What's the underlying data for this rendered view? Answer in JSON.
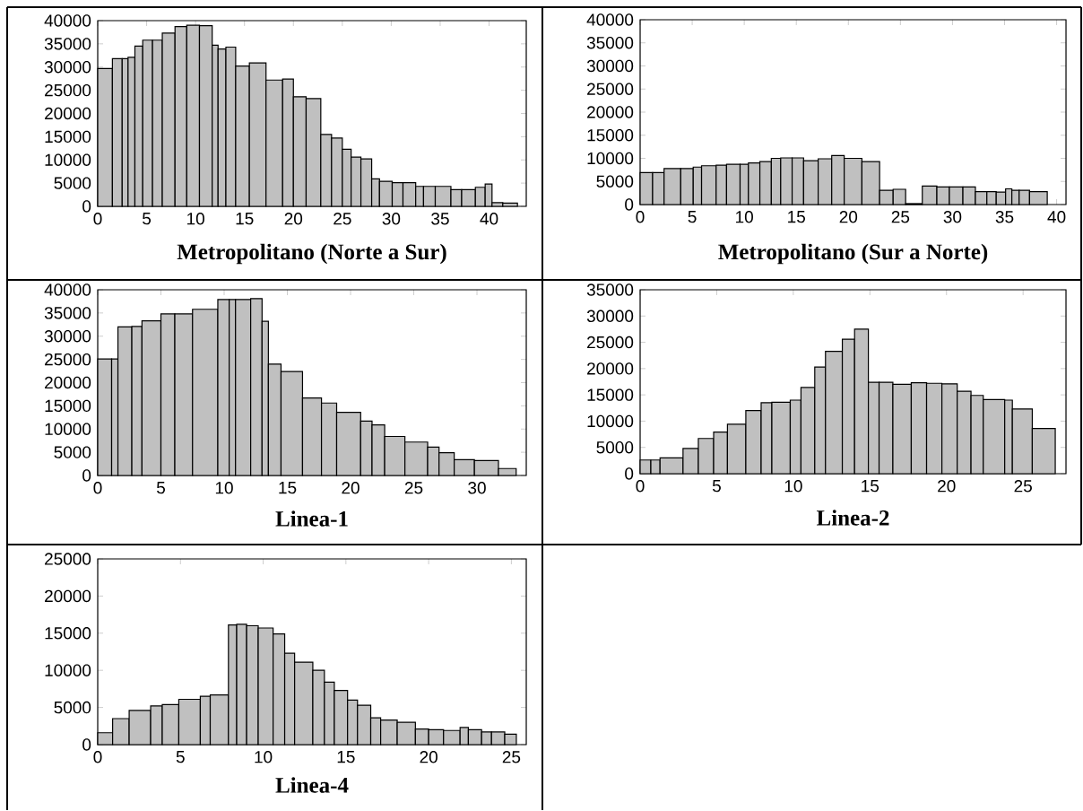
{
  "chart_data": [
    {
      "type": "histogram",
      "title": "Metropolitano (Norte a Sur)",
      "color": "#c0c0c0",
      "bins": [
        0,
        1.5,
        2.5,
        3.1,
        3.8,
        4.6,
        5.6,
        6.6,
        7.9,
        9.1,
        10.4,
        11.7,
        12.3,
        13.1,
        14.1,
        15.5,
        17.2,
        18.9,
        20.0,
        21.3,
        22.8,
        23.9,
        25.0,
        25.9,
        26.9,
        28.0,
        28.8,
        30.1,
        31.2,
        32.5,
        33.3,
        34.5,
        36.1,
        37.2,
        38.6,
        39.6,
        40.3,
        41.4,
        42.9
      ],
      "values": [
        29700,
        31800,
        31800,
        32100,
        34500,
        35800,
        35800,
        37300,
        38700,
        39000,
        38900,
        34700,
        33900,
        34300,
        30200,
        30900,
        27200,
        27400,
        23600,
        23200,
        15500,
        14700,
        12300,
        10600,
        10200,
        5900,
        5400,
        5100,
        5100,
        4300,
        4300,
        4300,
        3600,
        3600,
        4100,
        4800,
        800,
        700
      ],
      "xlim": [
        0,
        43.8
      ],
      "ylim": [
        0,
        40000
      ],
      "xticks": [
        0,
        5,
        10,
        15,
        20,
        25,
        30,
        35,
        40
      ],
      "yticks": [
        0,
        5000,
        10000,
        15000,
        20000,
        25000,
        30000,
        35000,
        40000
      ]
    },
    {
      "type": "histogram",
      "title": "Metropolitano (Sur a Norte)",
      "color": "#c0c0c0",
      "bins": [
        0,
        1.2,
        2.3,
        3.9,
        5.1,
        5.9,
        7.3,
        8.3,
        9.6,
        10.4,
        11.5,
        12.6,
        13.5,
        14.6,
        15.7,
        17.1,
        18.4,
        19.6,
        21.3,
        23.0,
        24.3,
        25.5,
        27.1,
        28.5,
        29.7,
        31.0,
        32.2,
        33.3,
        34.2,
        35.1,
        35.7,
        36.4,
        37.4,
        39.1
      ],
      "values": [
        6900,
        6900,
        7800,
        7800,
        8100,
        8400,
        8500,
        8700,
        8700,
        9000,
        9300,
        10000,
        10100,
        10100,
        9500,
        9900,
        10600,
        10000,
        9300,
        3100,
        3300,
        200,
        4000,
        3800,
        3800,
        3800,
        2800,
        2800,
        2700,
        3400,
        3100,
        3100,
        2800
      ],
      "xlim": [
        0,
        40.9
      ],
      "ylim": [
        0,
        40000
      ],
      "xticks": [
        0,
        5,
        10,
        15,
        20,
        25,
        30,
        35,
        40
      ],
      "yticks": [
        0,
        5000,
        10000,
        15000,
        20000,
        25000,
        30000,
        35000,
        40000
      ]
    },
    {
      "type": "histogram",
      "title": "Linea-1",
      "color": "#c0c0c0",
      "bins": [
        0,
        1.1,
        1.6,
        2.7,
        3.5,
        5.0,
        6.1,
        7.5,
        9.5,
        10.4,
        10.9,
        12.1,
        13.0,
        13.5,
        14.5,
        16.2,
        17.7,
        18.9,
        20.8,
        21.7,
        22.7,
        24.3,
        26.1,
        27.0,
        28.2,
        29.8,
        31.7,
        33.1
      ],
      "values": [
        25100,
        25100,
        32000,
        32100,
        33300,
        34800,
        34800,
        35800,
        37900,
        37900,
        37900,
        38100,
        33200,
        24000,
        22400,
        16700,
        15600,
        13600,
        11700,
        10900,
        8400,
        7200,
        6100,
        4900,
        3400,
        3200,
        1500
      ],
      "xlim": [
        0,
        33.9
      ],
      "ylim": [
        0,
        40000
      ],
      "xticks": [
        0,
        5,
        10,
        15,
        20,
        25,
        30
      ],
      "yticks": [
        0,
        5000,
        10000,
        15000,
        20000,
        25000,
        30000,
        35000,
        40000
      ]
    },
    {
      "type": "histogram",
      "title": "Linea-2",
      "color": "#c0c0c0",
      "bins": [
        0,
        0.7,
        1.3,
        2.8,
        3.8,
        4.8,
        5.7,
        6.9,
        7.9,
        8.6,
        9.8,
        10.5,
        11.4,
        12.1,
        13.2,
        14.0,
        14.9,
        15.6,
        16.5,
        17.7,
        18.7,
        19.7,
        20.7,
        21.6,
        22.4,
        23.8,
        24.3,
        25.6,
        27.1
      ],
      "values": [
        2600,
        2600,
        3000,
        4800,
        6700,
        7900,
        9400,
        12000,
        13500,
        13600,
        14000,
        16400,
        20300,
        23300,
        25600,
        27500,
        17400,
        17400,
        17000,
        17300,
        17200,
        17100,
        15700,
        14900,
        14100,
        14000,
        12300,
        8600
      ],
      "xlim": [
        0,
        27.8
      ],
      "ylim": [
        0,
        35000
      ],
      "xticks": [
        0,
        5,
        10,
        15,
        20,
        25
      ],
      "yticks": [
        0,
        5000,
        10000,
        15000,
        20000,
        25000,
        30000,
        35000
      ]
    },
    {
      "type": "histogram",
      "title": "Linea-4",
      "color": "#c0c0c0",
      "bins": [
        0,
        0.9,
        1.9,
        3.2,
        3.9,
        4.9,
        6.2,
        6.8,
        7.9,
        8.4,
        9.0,
        9.7,
        10.6,
        11.3,
        11.9,
        13.0,
        13.7,
        14.3,
        15.1,
        15.7,
        16.5,
        17.1,
        18.1,
        19.2,
        20.0,
        20.9,
        21.9,
        22.4,
        23.2,
        23.8,
        24.6,
        25.3
      ],
      "values": [
        1600,
        3500,
        4600,
        5200,
        5400,
        6100,
        6500,
        6700,
        16100,
        16200,
        16000,
        15700,
        14900,
        12300,
        11100,
        10000,
        8400,
        7300,
        6000,
        5300,
        3600,
        3300,
        3000,
        2100,
        2000,
        1900,
        2300,
        2000,
        1700,
        1700,
        1400
      ],
      "xlim": [
        0,
        25.9
      ],
      "ylim": [
        0,
        25000
      ],
      "xticks": [
        0,
        5,
        10,
        15,
        20,
        25
      ],
      "yticks": [
        0,
        5000,
        10000,
        15000,
        20000,
        25000
      ]
    }
  ]
}
